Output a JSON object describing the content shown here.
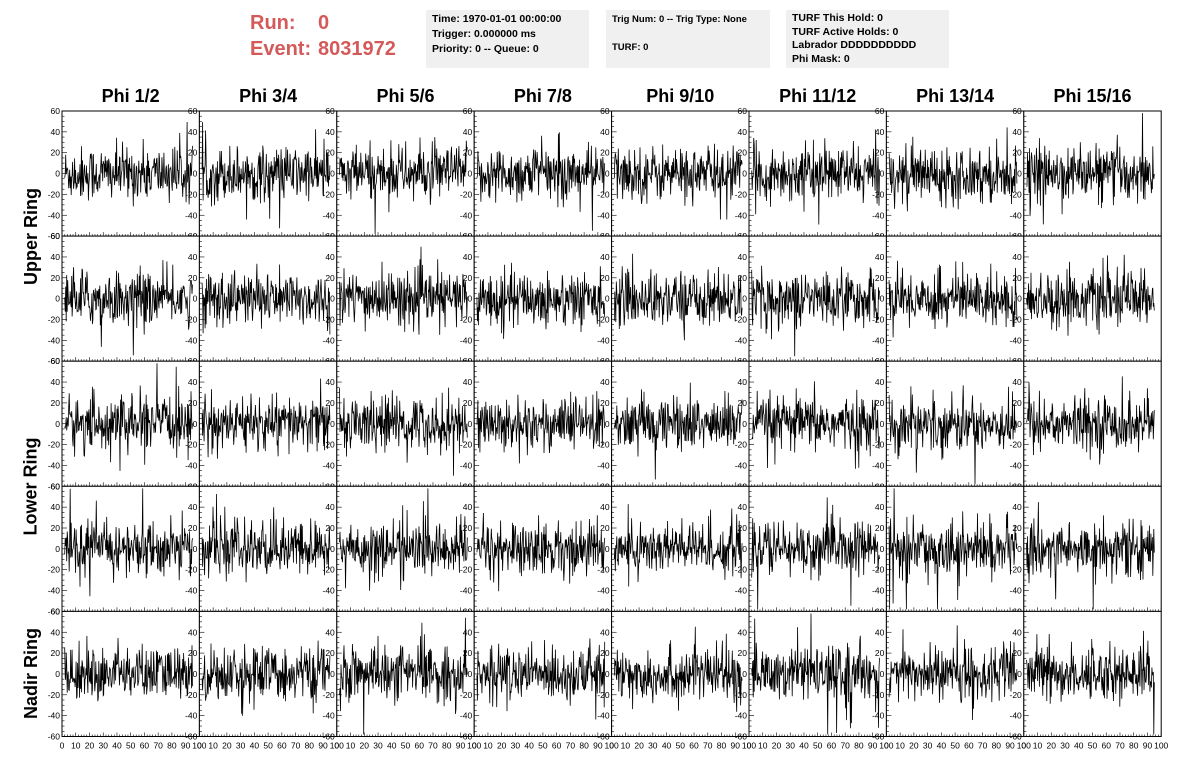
{
  "header": {
    "run_label": "Run:",
    "run_value": "0",
    "event_label": "Event:",
    "event_value": "8031972",
    "run_color": "#d45a5a"
  },
  "info_boxes": {
    "box1": [
      "Time: 1970-01-01 00:00:00",
      "Trigger: 0.000000 ms",
      "Priority: 0 -- Queue: 0"
    ],
    "box2": [
      "Trig Num: 0 -- Trig Type: None",
      "",
      "TURF: 0"
    ],
    "box3": [
      "TURF This Hold: 0",
      "TURF Active Holds: 0",
      "Labrador DDDDDDDDDD",
      "Phi Mask: 0"
    ]
  },
  "columns": [
    "Phi 1/2",
    "Phi 3/4",
    "Phi 5/6",
    "Phi 7/8",
    "Phi 9/10",
    "Phi 11/12",
    "Phi 13/14",
    "Phi 15/16"
  ],
  "ring_labels": {
    "upper": "Upper Ring",
    "lower": "Lower Ring",
    "nadir": "Nadir Ring"
  },
  "chart_data": {
    "type": "line",
    "grid_rows": 5,
    "grid_cols": 8,
    "xlim": [
      0,
      100
    ],
    "ylim": [
      -60,
      60
    ],
    "x_ticks": [
      "0",
      "10",
      "20",
      "30",
      "40",
      "50",
      "60",
      "70",
      "80",
      "90",
      "100"
    ],
    "y_ticks": [
      "60",
      "40",
      "20",
      "0",
      "-20",
      "-40",
      "-60"
    ],
    "y_tick_values": [
      60,
      40,
      20,
      0,
      -20,
      -40,
      -60
    ],
    "trace_color": "#000000",
    "note_series": "Each panel shows a noise waveform of ~260 samples spanning x 0-95 with amplitude mostly within ±30, occasional spikes to ±50."
  }
}
